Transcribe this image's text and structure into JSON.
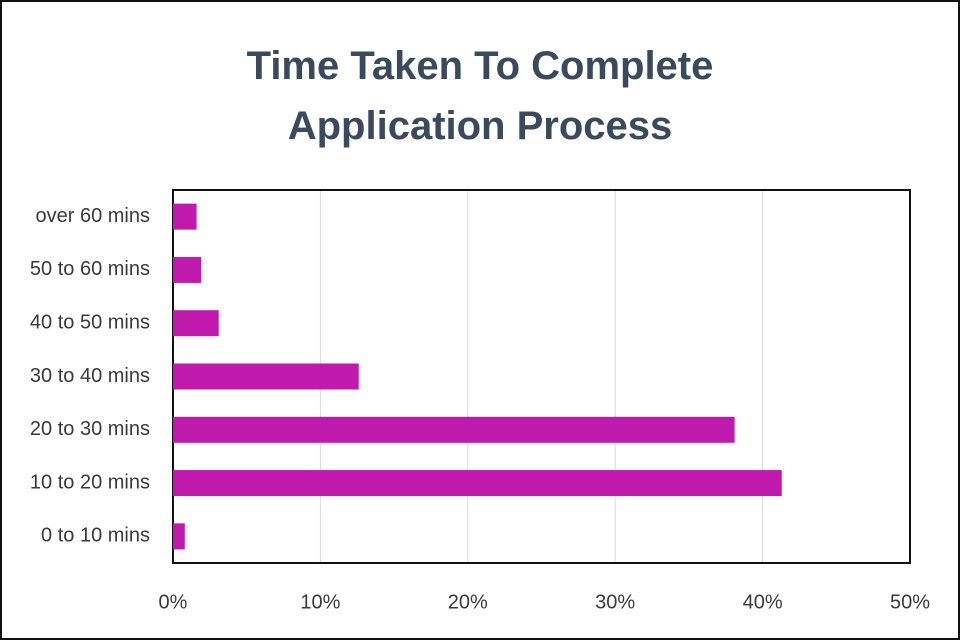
{
  "chart_data": {
    "type": "bar",
    "orientation": "horizontal",
    "title": "Time Taken To Complete Application Process",
    "categories": [
      "over 60 mins",
      "50 to 60 mins",
      "40 to 50 mins",
      "30 to 40 mins",
      "20 to 30 mins",
      "10 to 20 mins",
      "0 to 10 mins"
    ],
    "values": [
      1.6,
      1.9,
      3.1,
      12.6,
      38.1,
      41.3,
      0.8
    ],
    "color": "#c01aad",
    "xlim": [
      0,
      50
    ],
    "xticks": [
      {
        "value": 0,
        "label": "0%"
      },
      {
        "value": 10,
        "label": "10%"
      },
      {
        "value": 20,
        "label": "20%"
      },
      {
        "value": 30,
        "label": "30%"
      },
      {
        "value": 40,
        "label": "40%"
      },
      {
        "value": 50,
        "label": "50%"
      }
    ],
    "grid": true
  }
}
